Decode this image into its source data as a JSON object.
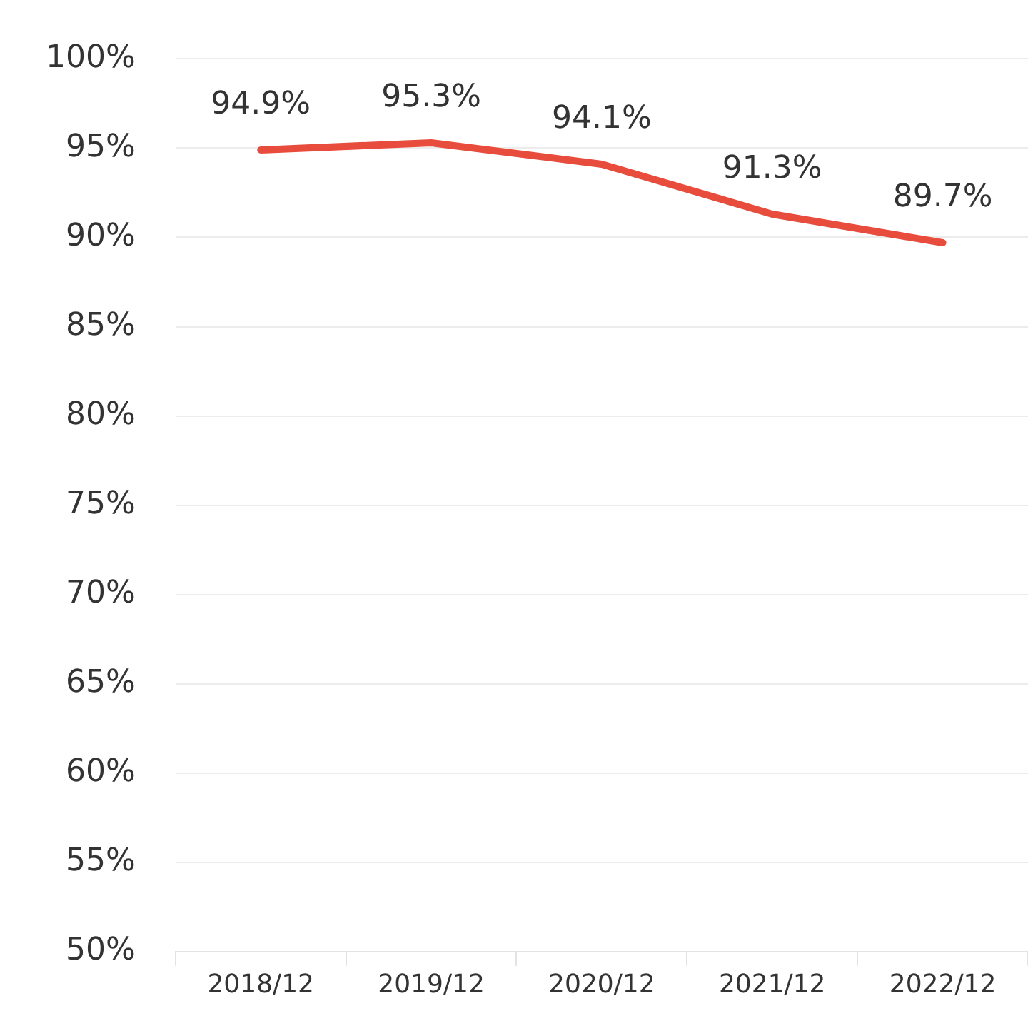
{
  "chart_data": {
    "type": "line",
    "categories": [
      "2018/12",
      "2019/12",
      "2020/12",
      "2021/12",
      "2022/12"
    ],
    "series": [
      {
        "color": "#e84c3d",
        "values": [
          94.9,
          95.3,
          94.1,
          91.3,
          89.7
        ],
        "value_labels": [
          "94.9%",
          "95.3%",
          "94.1%",
          "91.3%",
          "89.7%"
        ]
      }
    ],
    "ylim": [
      50,
      100
    ],
    "yticks": [
      {
        "value": 50,
        "label": "50%"
      },
      {
        "value": 55,
        "label": "55%"
      },
      {
        "value": 60,
        "label": "60%"
      },
      {
        "value": 65,
        "label": "65%"
      },
      {
        "value": 70,
        "label": "70%"
      },
      {
        "value": 75,
        "label": "75%"
      },
      {
        "value": 80,
        "label": "80%"
      },
      {
        "value": 85,
        "label": "85%"
      },
      {
        "value": 90,
        "label": "90%"
      },
      {
        "value": 95,
        "label": "95%"
      },
      {
        "value": 100,
        "label": "100%"
      }
    ],
    "grid": "y",
    "legend": false,
    "marker": "none",
    "line_style": "solid"
  }
}
